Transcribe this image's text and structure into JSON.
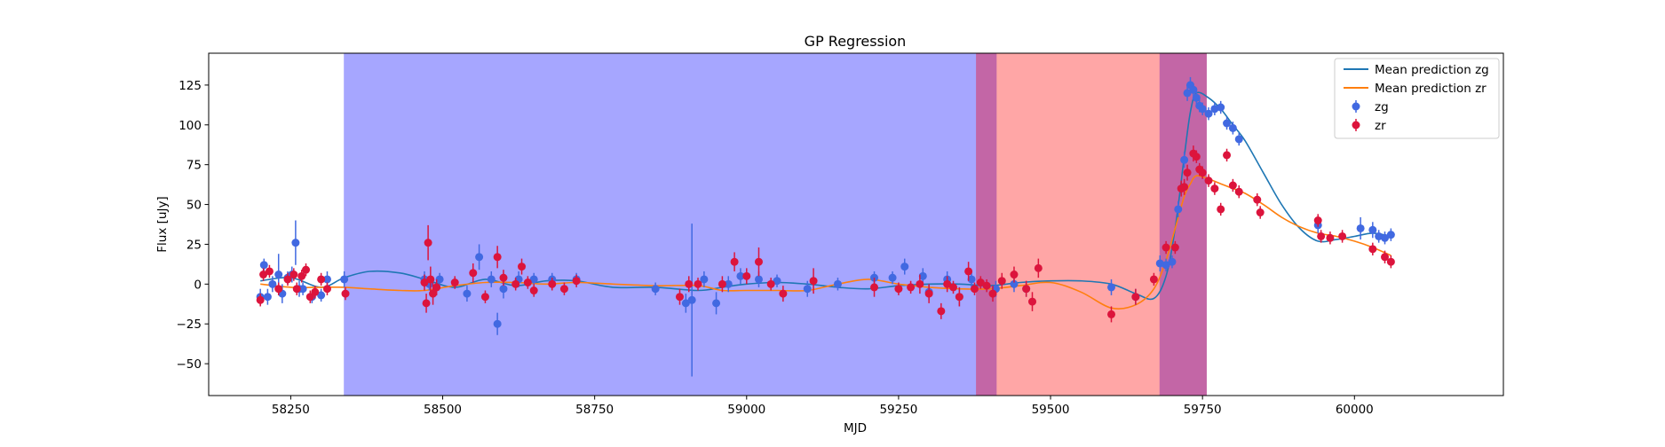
{
  "chart_data": {
    "type": "scatter",
    "title": "GP Regression",
    "xlabel": "MJD",
    "ylabel": "Flux [uJy]",
    "xlim": [
      58115,
      60245
    ],
    "ylim": [
      -70,
      145
    ],
    "xticks": [
      58250,
      58500,
      58750,
      59000,
      59250,
      59500,
      59750,
      60000
    ],
    "yticks": [
      -50,
      -25,
      0,
      25,
      50,
      75,
      100,
      125
    ],
    "grid": false,
    "legend_position": "top-right",
    "legend": {
      "mean_zg": "Mean prediction zg",
      "mean_zr": "Mean prediction zr",
      "zg": "zg",
      "zr": "zr"
    },
    "colors": {
      "mean_zg": "#1f77b4",
      "mean_zr": "#ff7f0e",
      "zg": "#4169e1",
      "zr": "#dc143c",
      "blue_band": "#a6a6ff",
      "red_band": "#ffa6a6",
      "overlap_band": "#c366a6"
    },
    "shaded_regions": [
      {
        "x0": 58338,
        "x1": 59378,
        "color": "blue_band"
      },
      {
        "x0": 59378,
        "x1": 59412,
        "color": "overlap_band"
      },
      {
        "x0": 59412,
        "x1": 59680,
        "color": "red_band"
      },
      {
        "x0": 59680,
        "x1": 59757,
        "color": "overlap_band"
      }
    ],
    "mean_prediction_zg": {
      "x": [
        58200,
        58250,
        58300,
        58338,
        58380,
        58430,
        58470,
        58520,
        58570,
        58620,
        58670,
        58720,
        58780,
        58850,
        58920,
        58960,
        59000,
        59050,
        59100,
        59150,
        59200,
        59250,
        59300,
        59350,
        59400,
        59450,
        59500,
        59550,
        59600,
        59640,
        59670,
        59690,
        59705,
        59720,
        59730,
        59740,
        59760,
        59780,
        59800,
        59820,
        59850,
        59880,
        59910,
        59940,
        59970,
        60000,
        60030,
        60060
      ],
      "y": [
        2,
        4,
        -2,
        4,
        8,
        7,
        3,
        -2,
        3,
        -1,
        2,
        2,
        -2,
        -2,
        -4,
        -2,
        0,
        1,
        0,
        -2,
        -3,
        -1,
        0,
        0,
        -1,
        1,
        2,
        2,
        0,
        -6,
        -9,
        5,
        35,
        80,
        108,
        120,
        117,
        110,
        100,
        90,
        70,
        50,
        35,
        27,
        28,
        30,
        32,
        30
      ]
    },
    "mean_prediction_zr": {
      "x": [
        58200,
        58250,
        58300,
        58338,
        58380,
        58430,
        58470,
        58520,
        58570,
        58620,
        58670,
        58720,
        58780,
        58850,
        58920,
        58960,
        59000,
        59050,
        59100,
        59150,
        59200,
        59250,
        59300,
        59350,
        59400,
        59450,
        59500,
        59550,
        59600,
        59640,
        59670,
        59690,
        59705,
        59720,
        59730,
        59740,
        59760,
        59780,
        59800,
        59820,
        59850,
        59880,
        59910,
        59940,
        59970,
        60000,
        60030,
        60060
      ],
      "y": [
        0,
        -2,
        -2,
        -2,
        -3,
        -4,
        -4,
        -1,
        1,
        1,
        0,
        1,
        0,
        -1,
        -1,
        -4,
        -4,
        -4,
        -4,
        0,
        3,
        0,
        -2,
        -3,
        -3,
        -1,
        1,
        -5,
        -15,
        -13,
        -3,
        15,
        35,
        55,
        63,
        68,
        66,
        63,
        60,
        57,
        50,
        42,
        36,
        32,
        30,
        27,
        23,
        18
      ]
    },
    "series": [
      {
        "name": "zg",
        "x": [
          58200,
          58206,
          58212,
          58220,
          58230,
          58236,
          58245,
          58252,
          58258,
          58264,
          58270,
          58285,
          58300,
          58310,
          58338,
          58470,
          58478,
          58495,
          58540,
          58560,
          58580,
          58590,
          58600,
          58625,
          58650,
          58680,
          58720,
          58850,
          58900,
          58910,
          58930,
          58950,
          58970,
          58990,
          59020,
          59050,
          59100,
          59150,
          59210,
          59240,
          59260,
          59290,
          59300,
          59330,
          59350,
          59370,
          59410,
          59440,
          59460,
          59600,
          59640,
          59680,
          59690,
          59700,
          59710,
          59720,
          59725,
          59730,
          59735,
          59740,
          59745,
          59750,
          59760,
          59770,
          59780,
          59790,
          59800,
          59810,
          59940,
          60010,
          60030,
          60040,
          60050,
          60060
        ],
        "y": [
          -8,
          12,
          -8,
          0,
          6,
          -6,
          4,
          6,
          26,
          -3,
          -3,
          -8,
          -7,
          3,
          3,
          3,
          0,
          3,
          -6,
          17,
          3,
          -25,
          -3,
          3,
          3,
          3,
          3,
          -3,
          -12,
          -10,
          3,
          -12,
          0,
          5,
          3,
          2,
          -3,
          0,
          4,
          4,
          11,
          5,
          -5,
          3,
          -8,
          3,
          -3,
          0,
          -3,
          -2,
          -8,
          13,
          12,
          14,
          47,
          78,
          120,
          125,
          122,
          117,
          112,
          110,
          107,
          110,
          111,
          101,
          98,
          91,
          37,
          35,
          34,
          30,
          29,
          31
        ],
        "err": [
          5,
          4,
          5,
          5,
          13,
          6,
          4,
          5,
          14,
          5,
          4,
          4,
          4,
          5,
          5,
          5,
          4,
          4,
          5,
          8,
          5,
          7,
          6,
          5,
          4,
          4,
          4,
          4,
          6,
          48,
          5,
          7,
          5,
          5,
          5,
          4,
          5,
          4,
          4,
          4,
          5,
          5,
          5,
          5,
          6,
          5,
          5,
          5,
          5,
          5,
          5,
          5,
          4,
          4,
          5,
          5,
          5,
          5,
          4,
          4,
          4,
          4,
          4,
          4,
          4,
          4,
          4,
          4,
          5,
          7,
          5,
          4,
          4,
          4
        ]
      },
      {
        "name": "zr",
        "x": [
          58200,
          58205,
          58215,
          58230,
          58245,
          58255,
          58260,
          58268,
          58275,
          58282,
          58290,
          58300,
          58310,
          58340,
          58470,
          58473,
          58476,
          58480,
          58484,
          58490,
          58520,
          58550,
          58570,
          58590,
          58600,
          58620,
          58630,
          58640,
          58650,
          58680,
          58700,
          58720,
          58890,
          58905,
          58920,
          58960,
          58980,
          59000,
          59020,
          59040,
          59060,
          59110,
          59210,
          59250,
          59270,
          59285,
          59300,
          59320,
          59330,
          59340,
          59350,
          59365,
          59375,
          59385,
          59395,
          59405,
          59420,
          59440,
          59460,
          59470,
          59480,
          59600,
          59640,
          59670,
          59690,
          59705,
          59715,
          59720,
          59725,
          59735,
          59740,
          59745,
          59750,
          59760,
          59770,
          59780,
          59790,
          59800,
          59810,
          59840,
          59845,
          59940,
          59945,
          59960,
          59980,
          60030,
          60050,
          60060
        ],
        "y": [
          -10,
          6,
          8,
          -3,
          3,
          6,
          -3,
          5,
          9,
          -8,
          -5,
          3,
          -3,
          -6,
          1,
          -12,
          26,
          3,
          -6,
          -2,
          1,
          7,
          -8,
          17,
          4,
          0,
          11,
          1,
          -4,
          0,
          -3,
          2,
          -8,
          0,
          0,
          0,
          14,
          5,
          14,
          0,
          -6,
          2,
          -2,
          -3,
          -2,
          0,
          -6,
          -17,
          0,
          -2,
          -8,
          8,
          -3,
          1,
          -1,
          -6,
          2,
          6,
          -3,
          -11,
          10,
          -19,
          -8,
          3,
          23,
          23,
          60,
          61,
          70,
          82,
          80,
          72,
          70,
          65,
          60,
          47,
          81,
          62,
          58,
          53,
          45,
          40,
          30,
          29,
          30,
          22,
          17,
          14
        ],
        "err": [
          4,
          4,
          4,
          4,
          4,
          4,
          4,
          4,
          4,
          4,
          4,
          4,
          4,
          4,
          5,
          6,
          11,
          8,
          7,
          5,
          4,
          6,
          4,
          7,
          5,
          4,
          5,
          4,
          4,
          4,
          4,
          4,
          5,
          5,
          4,
          5,
          6,
          5,
          9,
          4,
          5,
          8,
          6,
          4,
          4,
          6,
          6,
          5,
          5,
          4,
          6,
          6,
          4,
          4,
          4,
          5,
          5,
          5,
          5,
          6,
          6,
          5,
          5,
          4,
          4,
          4,
          5,
          5,
          5,
          5,
          4,
          4,
          4,
          4,
          4,
          4,
          4,
          4,
          4,
          4,
          4,
          4,
          4,
          4,
          4,
          4,
          4,
          4
        ]
      }
    ]
  }
}
